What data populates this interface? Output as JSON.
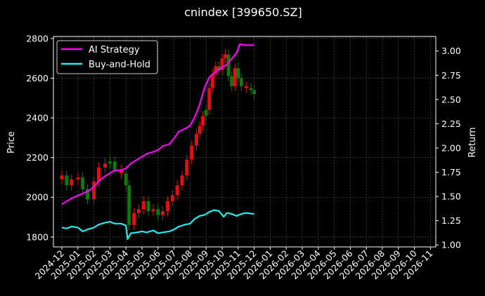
{
  "chart_data": {
    "type": "line",
    "title": "cnindex [399650.SZ]",
    "ylabel_left": "Price",
    "ylabel_right": "Return",
    "ylim_left": [
      1750,
      2810
    ],
    "ylim_right": [
      0.98,
      3.15
    ],
    "yticks_left": [
      1800,
      2000,
      2200,
      2400,
      2600,
      2800
    ],
    "yticks_right": [
      1.0,
      1.25,
      1.5,
      1.75,
      2.0,
      2.25,
      2.5,
      2.75,
      3.0
    ],
    "yticks_right_labels": [
      "1.00",
      "1.25",
      "1.50",
      "1.75",
      "2.00",
      "2.25",
      "2.50",
      "2.75",
      "3.00"
    ],
    "x_labels": [
      "2024-12",
      "2025-01",
      "2025-02",
      "2025-03",
      "2025-04",
      "2025-05",
      "2025-06",
      "2025-07",
      "2025-08",
      "2025-09",
      "2025-10",
      "2025-11",
      "2025-12",
      "2026-01",
      "2026-02",
      "2026-03",
      "2026-04",
      "2026-05",
      "2026-06",
      "2026-07",
      "2026-08",
      "2026-09",
      "2026-10",
      "2026-11"
    ],
    "grid": true,
    "legend_position": "top-left",
    "colors": {
      "ai_strategy": "#ff00ff",
      "buy_and_hold": "#22eeee",
      "candle_up": "#dd1111",
      "candle_down": "#117711",
      "background": "#000000",
      "grid": "#555555"
    },
    "series": [
      {
        "name": "AI Strategy",
        "axis": "right",
        "x": [
          0,
          0.3,
          0.6,
          1.0,
          1.3,
          1.7,
          2.0,
          2.3,
          2.7,
          3.0,
          3.3,
          3.7,
          4.0,
          4.3,
          4.7,
          5.0,
          5.3,
          5.7,
          6.0,
          6.3,
          6.7,
          7.0,
          7.3,
          7.7,
          8.0,
          8.3,
          8.6,
          8.9,
          9.2,
          9.5,
          9.7,
          10.0,
          10.3,
          10.6,
          10.9,
          11.1,
          11.5,
          12.0
        ],
        "y": [
          1.42,
          1.45,
          1.48,
          1.51,
          1.53,
          1.56,
          1.6,
          1.66,
          1.71,
          1.74,
          1.77,
          1.77,
          1.79,
          1.84,
          1.88,
          1.91,
          1.94,
          1.96,
          1.98,
          2.02,
          2.04,
          2.1,
          2.17,
          2.2,
          2.23,
          2.32,
          2.45,
          2.62,
          2.73,
          2.77,
          2.8,
          2.83,
          2.86,
          2.92,
          2.98,
          3.07,
          3.06,
          3.06
        ]
      },
      {
        "name": "Buy-and-Hold",
        "axis": "right",
        "x": [
          0,
          0.3,
          0.6,
          1.0,
          1.3,
          1.6,
          2.0,
          2.3,
          2.7,
          3.0,
          3.3,
          3.7,
          4.0,
          4.1,
          4.3,
          4.7,
          5.0,
          5.3,
          5.7,
          6.0,
          6.3,
          6.7,
          7.0,
          7.3,
          7.7,
          8.0,
          8.3,
          8.6,
          8.9,
          9.2,
          9.5,
          9.8,
          10.1,
          10.3,
          10.6,
          10.9,
          11.2,
          11.5,
          12.0
        ],
        "y": [
          1.18,
          1.17,
          1.19,
          1.18,
          1.14,
          1.16,
          1.18,
          1.21,
          1.23,
          1.24,
          1.22,
          1.22,
          1.2,
          1.06,
          1.12,
          1.13,
          1.14,
          1.13,
          1.15,
          1.12,
          1.13,
          1.14,
          1.16,
          1.19,
          1.21,
          1.22,
          1.27,
          1.3,
          1.31,
          1.34,
          1.36,
          1.35,
          1.29,
          1.33,
          1.32,
          1.3,
          1.32,
          1.33,
          1.32
        ]
      }
    ],
    "candles": {
      "name": "Price",
      "axis": "left",
      "x": [
        0,
        0.3,
        0.6,
        1.0,
        1.3,
        1.6,
        2.0,
        2.3,
        2.7,
        3.0,
        3.3,
        3.7,
        4.0,
        4.2,
        4.5,
        4.8,
        5.1,
        5.4,
        5.7,
        6.0,
        6.3,
        6.6,
        6.9,
        7.2,
        7.5,
        7.8,
        8.1,
        8.4,
        8.6,
        8.8,
        9.0,
        9.2,
        9.4,
        9.6,
        9.8,
        10.0,
        10.2,
        10.4,
        10.6,
        10.8,
        11.0,
        11.2,
        11.5,
        11.8,
        12.0
      ],
      "close": [
        2110,
        2060,
        2090,
        2100,
        2040,
        1990,
        2080,
        2150,
        2170,
        2180,
        2140,
        2120,
        2060,
        1860,
        1920,
        1940,
        1980,
        1930,
        1940,
        1910,
        1930,
        1980,
        2010,
        2060,
        2110,
        2190,
        2260,
        2320,
        2360,
        2410,
        2440,
        2550,
        2620,
        2660,
        2640,
        2700,
        2720,
        2610,
        2560,
        2650,
        2600,
        2560,
        2550,
        2540,
        2520
      ],
      "up": [
        true,
        false,
        true,
        true,
        false,
        false,
        true,
        true,
        true,
        false,
        false,
        true,
        false,
        false,
        true,
        true,
        true,
        false,
        true,
        false,
        true,
        true,
        true,
        true,
        true,
        true,
        true,
        true,
        true,
        true,
        false,
        true,
        true,
        true,
        false,
        true,
        true,
        false,
        false,
        true,
        false,
        false,
        true,
        false,
        false
      ]
    }
  }
}
